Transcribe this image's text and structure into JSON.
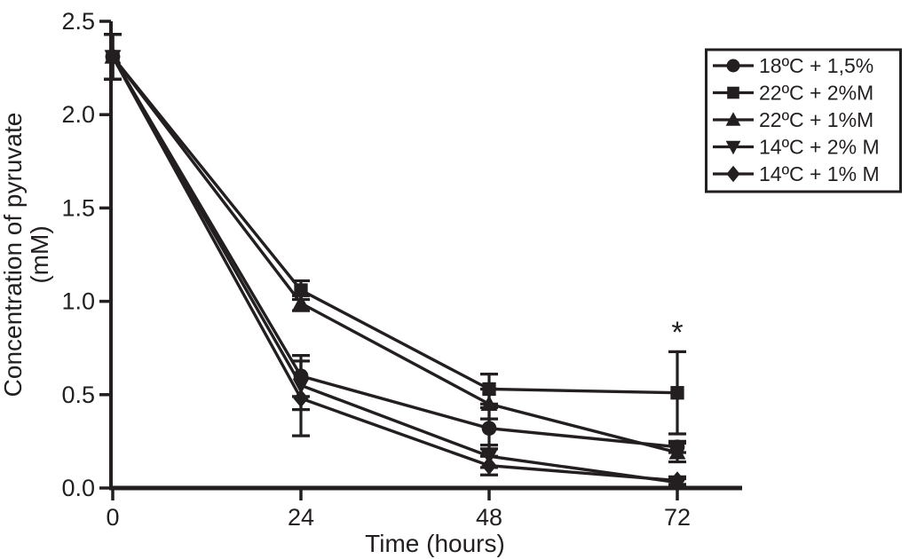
{
  "figure": {
    "background": "#ffffff",
    "ink": "#231f20",
    "description": "Line chart of pyruvate concentration over time under five storage conditions"
  },
  "chart_data": {
    "type": "line",
    "title": "",
    "xlabel": "Time (hours)",
    "ylabel_line1": "Concentration of pyruvate",
    "ylabel_line2": "(mM)",
    "x": [
      0,
      24,
      48,
      72
    ],
    "xticks": [
      "0",
      "24",
      "48",
      "72"
    ],
    "yticks": [
      "0.0",
      "0.5",
      "1.0",
      "1.5",
      "2.0",
      "2.5"
    ],
    "xlim": [
      0,
      80
    ],
    "ylim": [
      0.0,
      2.5
    ],
    "grid": false,
    "line_color": "#231f20",
    "legend_position": "top-right",
    "series": [
      {
        "name": "18ºC + 1,5%",
        "marker": "circle",
        "values": [
          2.31,
          0.6,
          0.32,
          0.22
        ],
        "errors": [
          0.12,
          0.11,
          0.11,
          0.03
        ]
      },
      {
        "name": "22ºC + 2%M",
        "marker": "square",
        "values": [
          2.31,
          1.06,
          0.53,
          0.51
        ],
        "errors": [
          0.12,
          0.05,
          0.08,
          0.22
        ]
      },
      {
        "name": "22ºC + 1%M",
        "marker": "triangle-up",
        "values": [
          2.31,
          0.99,
          0.45,
          0.19
        ],
        "errors": [
          0.12,
          0.04,
          0.08,
          0.05
        ]
      },
      {
        "name": "14ºC + 2% M",
        "marker": "triangle-down",
        "values": [
          2.31,
          0.55,
          0.17,
          0.03
        ],
        "errors": [
          0.12,
          0.13,
          0.06,
          0.02
        ]
      },
      {
        "name": "14ºC + 1% M",
        "marker": "diamond",
        "values": [
          2.31,
          0.48,
          0.12,
          0.04
        ],
        "errors": [
          0.12,
          0.2,
          0.05,
          0.02
        ]
      }
    ],
    "annotations": [
      {
        "text": "*",
        "x": 72,
        "y": 0.78
      }
    ]
  }
}
